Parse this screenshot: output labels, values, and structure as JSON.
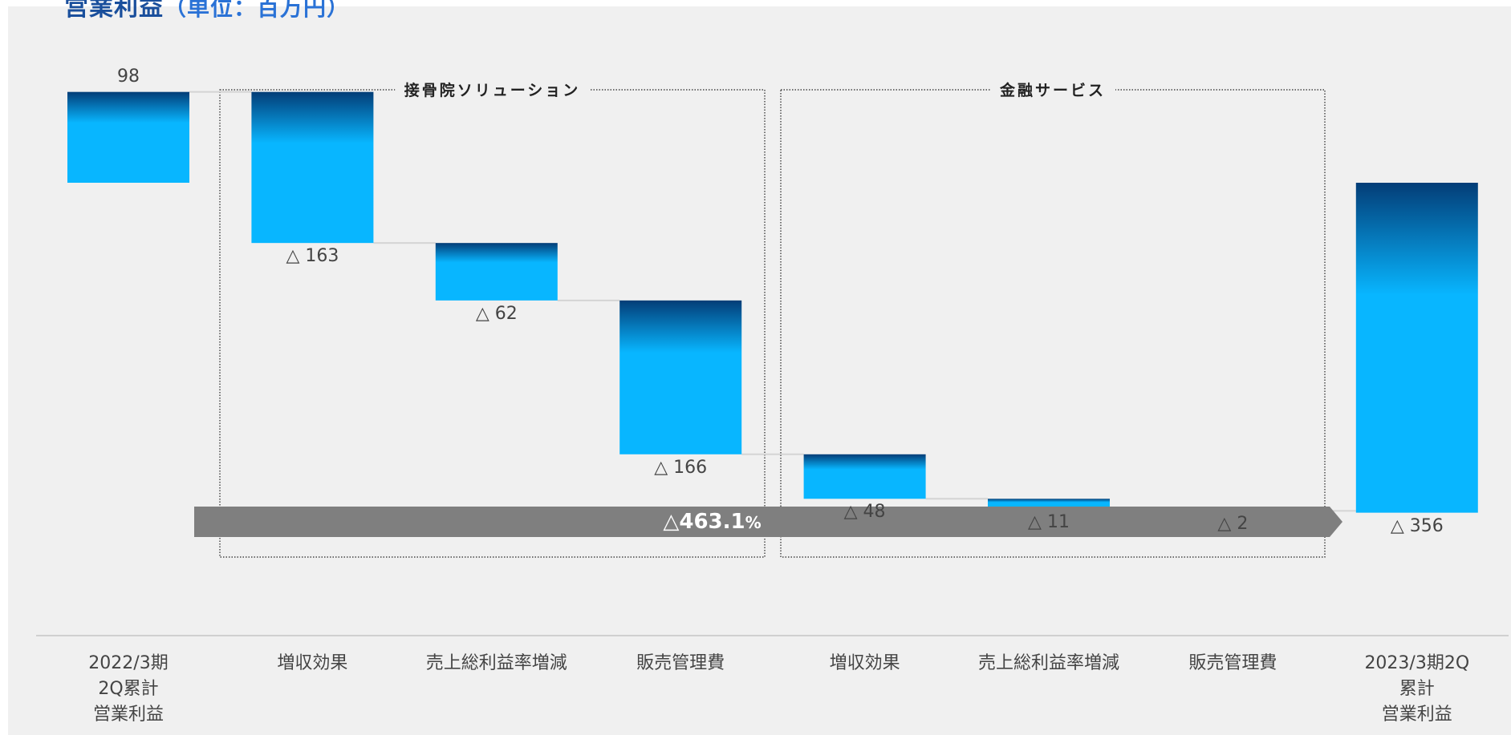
{
  "title": {
    "main": "営業利益",
    "unit": "（単位：百万円）"
  },
  "colors": {
    "bar_dark": "#033d77",
    "bar_light": "#08b6ff",
    "arrow": "#7f7f7f",
    "background": "#f0f0f0",
    "connector": "#d4d4d4"
  },
  "groups": [
    {
      "label": "接骨院ソリューション"
    },
    {
      "label": "金融サービス"
    }
  ],
  "summary": {
    "text": "△463.1",
    "unit": "%"
  },
  "chart_data": {
    "type": "bar",
    "subtype": "waterfall",
    "categories": [
      "2022/3期\n2Q累計\n営業利益",
      "増収効果",
      "売上総利益率増減",
      "販売管理費",
      "増収効果",
      "売上総利益率増減",
      "販売管理費",
      "2023/3期2Q\n累計\n営業利益"
    ],
    "values": [
      98,
      -163,
      -62,
      -166,
      -48,
      -11,
      -2,
      -356
    ],
    "labels": [
      "98",
      "△ 163",
      "△ 62",
      "△ 166",
      "△ 48",
      "△ 11",
      "△ 2",
      "△ 356"
    ],
    "kinds": [
      "total",
      "delta",
      "delta",
      "delta",
      "delta",
      "delta",
      "delta",
      "total"
    ],
    "category_groups": [
      null,
      0,
      0,
      0,
      1,
      1,
      1,
      null
    ],
    "grid": false,
    "legend": "none"
  }
}
